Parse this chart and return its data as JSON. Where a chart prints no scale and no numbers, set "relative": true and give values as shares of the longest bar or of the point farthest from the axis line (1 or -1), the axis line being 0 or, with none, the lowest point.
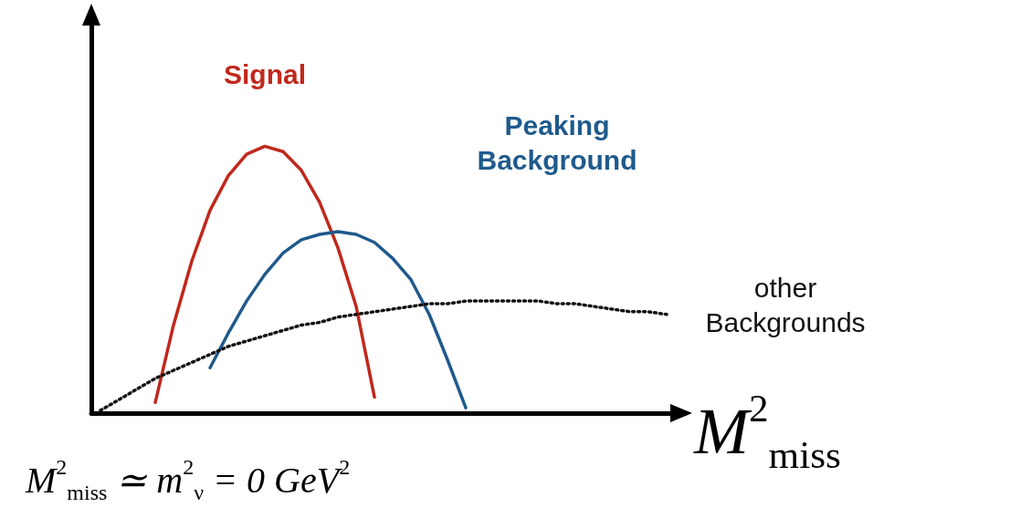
{
  "chart_data": {
    "type": "line",
    "relative": true,
    "xlabel": "M$^{2}$$_{miss}$",
    "marker": "none",
    "categories": [
      null,
      null,
      null,
      null,
      null,
      null,
      null,
      null,
      null,
      null,
      null,
      null,
      null,
      null,
      null,
      null,
      null,
      null,
      null,
      null,
      null,
      null,
      null,
      null,
      null,
      null,
      null,
      null,
      null,
      null,
      null,
      null
    ],
    "series": [
      {
        "name": "Signal",
        "color": "#c0281c",
        "line_style": "solid",
        "values": [
          null,
          null,
          null,
          0.04,
          0.33,
          0.57,
          0.76,
          0.89,
          0.97,
          1.0,
          0.98,
          0.91,
          0.79,
          0.62,
          0.4,
          0.06,
          null,
          null,
          null,
          null,
          null,
          null,
          null,
          null,
          null,
          null,
          null,
          null,
          null,
          null,
          null,
          null
        ]
      },
      {
        "name": "Peaking Background",
        "color": "#1f5a8c",
        "line_style": "solid",
        "values": [
          null,
          null,
          null,
          null,
          null,
          null,
          0.17,
          0.3,
          0.42,
          0.52,
          0.6,
          0.65,
          0.67,
          0.68,
          0.67,
          0.64,
          0.58,
          0.5,
          0.37,
          0.2,
          0.02,
          null,
          null,
          null,
          null,
          null,
          null,
          null,
          null,
          null,
          null,
          null
        ]
      },
      {
        "name": "other Backgrounds",
        "color": "#111111",
        "line_style": "dotted",
        "values": [
          0.01,
          0.05,
          0.09,
          0.13,
          0.16,
          0.19,
          0.22,
          0.25,
          0.27,
          0.29,
          0.31,
          0.33,
          0.34,
          0.36,
          0.37,
          0.38,
          0.39,
          0.4,
          0.41,
          0.41,
          0.42,
          0.42,
          0.42,
          0.42,
          0.42,
          0.41,
          0.41,
          0.4,
          0.39,
          0.38,
          0.38,
          0.37
        ]
      }
    ],
    "annotations": [
      "M$^{2}$$_{miss}$ ≃ m$^{2}$$_{ν}$ = 0 GeV$^{2}$"
    ]
  }
}
